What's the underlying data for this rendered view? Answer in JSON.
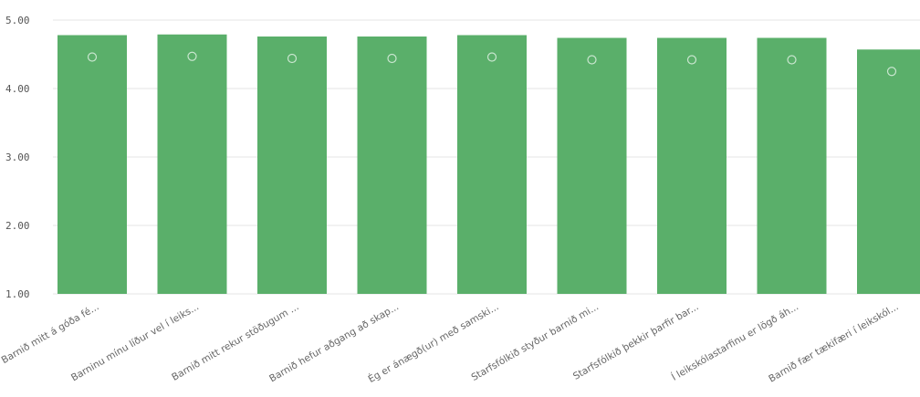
{
  "chart_data": {
    "type": "bar",
    "title": "",
    "xlabel": "",
    "ylabel": "",
    "ylim": [
      1,
      5
    ],
    "yticks": [
      "1.00",
      "2.00",
      "3.00",
      "4.00",
      "5.00"
    ],
    "grid": true,
    "legend": "none",
    "bar_color": "#5aaf6a",
    "categories": [
      "Barnið mitt á góða fé...",
      "Barninu mínu líður vel í leiks...",
      "Barnið mitt rekur stöðugum ...",
      "Barnið hefur aðgang að skap...",
      "Ég er ánægð(ur) með samski...",
      "Starfsfólkið styður barnið mi...",
      "Starfsfólkið þekkir þarfir bar...",
      "Í leikskólastarfinu er lögð áh...",
      "Barnið fær tækifæri í leikskól..."
    ],
    "values": [
      4.78,
      4.79,
      4.76,
      4.76,
      4.78,
      4.74,
      4.74,
      4.74,
      4.57
    ]
  }
}
